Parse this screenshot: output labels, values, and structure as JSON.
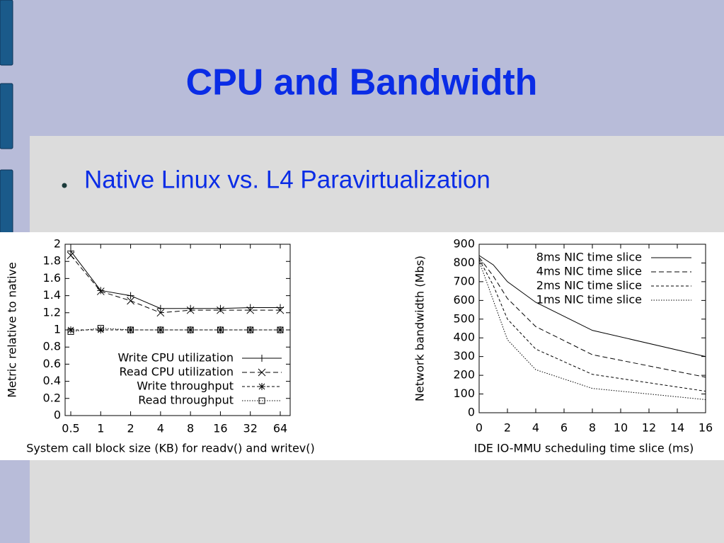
{
  "title": "CPU and Bandwidth",
  "bullet": "Native Linux vs. L4 Paravirtualization",
  "chart_data": [
    {
      "type": "line",
      "x_label": "System call block size (KB) for readv() and writev()",
      "y_label": "Metric relative to native",
      "categories": [
        "0.5",
        "1",
        "2",
        "4",
        "8",
        "16",
        "32",
        "64"
      ],
      "ylim": [
        0,
        2
      ],
      "yticks": [
        0,
        0.2,
        0.4,
        0.6,
        0.8,
        1,
        1.2,
        1.4,
        1.6,
        1.8,
        2
      ],
      "legend": "bottom-right",
      "series": [
        {
          "name": "Write CPU utilization",
          "color": "#000000",
          "dash": "solid",
          "marker": "plus",
          "values": [
            1.92,
            1.46,
            1.4,
            1.25,
            1.25,
            1.25,
            1.26,
            1.26
          ]
        },
        {
          "name": "Read CPU utilization",
          "color": "#000000",
          "dash": "dashed",
          "marker": "cross",
          "values": [
            1.87,
            1.45,
            1.34,
            1.2,
            1.23,
            1.23,
            1.23,
            1.23
          ]
        },
        {
          "name": "Write throughput",
          "color": "#000000",
          "dash": "dash-dot",
          "marker": "star",
          "values": [
            1,
            1,
            1,
            1,
            1,
            1,
            1,
            1
          ]
        },
        {
          "name": "Read throughput",
          "color": "#000000",
          "dash": "dotted",
          "marker": "square",
          "values": [
            0.98,
            1.02,
            1,
            1,
            1,
            1,
            1,
            1
          ]
        }
      ]
    },
    {
      "type": "line",
      "x_label": "IDE IO-MMU scheduling time slice (ms)",
      "y_label": "Network bandwidth (Mbs)",
      "x": [
        0,
        1,
        2,
        4,
        8,
        16
      ],
      "xlim": [
        0,
        16
      ],
      "xticks": [
        0,
        2,
        4,
        6,
        8,
        10,
        12,
        14,
        16
      ],
      "ylim": [
        0,
        900
      ],
      "yticks": [
        0,
        100,
        200,
        300,
        400,
        500,
        600,
        700,
        800,
        900
      ],
      "legend": "top-right",
      "series": [
        {
          "name": "8ms NIC time slice",
          "color": "#000000",
          "dash": "solid",
          "values": [
            840,
            790,
            700,
            590,
            440,
            300
          ]
        },
        {
          "name": "4ms NIC time slice",
          "color": "#000000",
          "dash": "dashed",
          "values": [
            830,
            730,
            610,
            460,
            310,
            190
          ]
        },
        {
          "name": "2ms NIC time slice",
          "color": "#000000",
          "dash": "dash-dot",
          "values": [
            820,
            680,
            500,
            340,
            205,
            115
          ]
        },
        {
          "name": "1ms NIC time slice",
          "color": "#000000",
          "dash": "dotted",
          "values": [
            810,
            600,
            390,
            230,
            130,
            70
          ]
        }
      ]
    }
  ]
}
